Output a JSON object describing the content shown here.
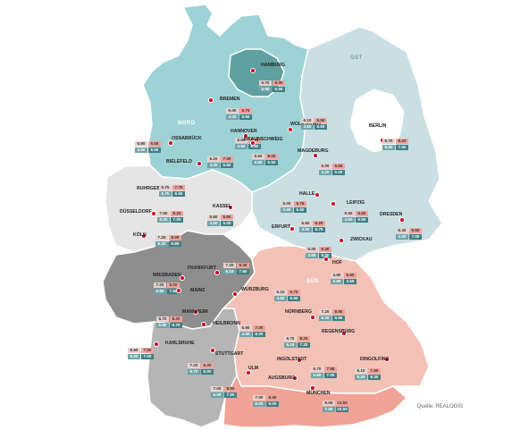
{
  "regions": [
    {
      "key": "nord",
      "label": "NORD",
      "color": "#9ed3d6"
    },
    {
      "key": "ost",
      "label": "OST",
      "color": "#c9dfe4"
    },
    {
      "key": "west",
      "label": "",
      "color": "#e5e5e5"
    },
    {
      "key": "rhein_main",
      "label": "",
      "color": "#8e8e8e"
    },
    {
      "key": "sued",
      "label": "SÜD",
      "color": "#f4c1b7"
    },
    {
      "key": "bw",
      "label": "",
      "color": "#b5b5b5"
    },
    {
      "key": "bayern_sued",
      "label": "",
      "color": "#f0a396"
    },
    {
      "key": "hamburg",
      "label": "",
      "color": "#5fa0a0"
    },
    {
      "key": "berlin",
      "label": "",
      "color": "#ffffff"
    }
  ],
  "cities": [
    {
      "name": "HAMBURG",
      "values": [
        "6.70",
        "9.00",
        "5.50",
        "6.50"
      ]
    },
    {
      "name": "BREMEN",
      "values": [
        "6.00",
        "6.75",
        "4.20",
        "5.50"
      ]
    },
    {
      "name": "NORD",
      "values": []
    },
    {
      "name": "HANNOVER",
      "values": [
        "6.00",
        "6.75",
        "4.50",
        "5.50"
      ]
    },
    {
      "name": "WOLFSBURG",
      "values": [
        "6.10",
        "6.50",
        "4.50",
        "5.50"
      ]
    },
    {
      "name": "OSNABRÜCK",
      "values": [
        "5.90",
        "6.50",
        "4.50",
        "5.50"
      ]
    },
    {
      "name": "BRAUNSCHWEIG",
      "values": [
        "6.50",
        "8.00",
        "4.90",
        "5.50"
      ]
    },
    {
      "name": "BIELEFELD",
      "values": [
        "6.20",
        "7.00",
        "4.00",
        "5.50"
      ]
    },
    {
      "name": "MAGDEBURG",
      "values": [
        "5.00",
        "5.65",
        "4.20",
        "5.00"
      ]
    },
    {
      "name": "BERLIN",
      "values": [
        "5.70",
        "8.20",
        "5.50",
        "7.50"
      ]
    },
    {
      "name": "RUHRGEBIET",
      "values": [
        "6.75",
        "7.75",
        "5.75",
        "6.50"
      ]
    },
    {
      "name": "DÜSSELDORF",
      "values": [
        "7.50",
        "8.25",
        "6.25",
        "7.00"
      ]
    },
    {
      "name": "KÖLN",
      "values": [
        "7.25",
        "8.00",
        "6.25",
        "6.85"
      ]
    },
    {
      "name": "KASSEL",
      "values": [
        "5.60",
        "6.80",
        "4.50",
        "5.00"
      ]
    },
    {
      "name": "HALLE",
      "values": [
        "5.00",
        "5.75",
        "3.90",
        "5.50"
      ]
    },
    {
      "name": "LEIPZIG",
      "values": [
        "5.50",
        "6.50",
        "4.50",
        "5.50"
      ]
    },
    {
      "name": "DRESDEN",
      "values": [
        "6.30",
        "6.60",
        "4.00",
        "7.00"
      ]
    },
    {
      "name": "ERFURT",
      "values": [
        "5.50",
        "6.20",
        "4.00",
        "5.75"
      ]
    },
    {
      "name": "ZWICKAU",
      "values": [
        "5.00",
        "5.40",
        "3.60",
        "5.00"
      ]
    },
    {
      "name": "FRANKFURT",
      "values": [
        "7.20",
        "9.30",
        "6.10",
        "7.50"
      ]
    },
    {
      "name": "WIESBADEN",
      "values": [
        "7.20",
        "8.00",
        "5.90",
        "7.50"
      ]
    },
    {
      "name": "MAINZ",
      "values": []
    },
    {
      "name": "HOF",
      "values": [
        "4.80",
        "5.60",
        "3.90",
        "4.50"
      ]
    },
    {
      "name": "SÜD",
      "values": []
    },
    {
      "name": "WÜRZBURG",
      "values": [
        "6.10",
        "6.70",
        "4.50",
        "5.90"
      ]
    },
    {
      "name": "MANNHEIM",
      "values": [
        "6.70",
        "8.20",
        "5.80",
        "6.70"
      ]
    },
    {
      "name": "NÜRNBERG",
      "values": [
        "7.20",
        "8.90",
        "6.20",
        "6.90"
      ]
    },
    {
      "name": "HEILBRONN",
      "values": [
        "5.90",
        "7.00",
        "4.90",
        "6.00"
      ]
    },
    {
      "name": "REGENSBURG",
      "values": [
        "6.70",
        "8.20",
        "6.10",
        "7.20"
      ]
    },
    {
      "name": "KARLSRUHE",
      "values": [
        "6.50",
        "7.50",
        "5.50",
        "7.00"
      ]
    },
    {
      "name": "STUTTGART",
      "values": [
        "7.20",
        "9.30",
        "5.70",
        "8.00"
      ]
    },
    {
      "name": "INGOLSTADT",
      "values": [
        "6.70",
        "7.95",
        "5.60",
        "7.00"
      ]
    },
    {
      "name": "DINGOLFING",
      "values": [
        "6.10",
        "7.50",
        "5.20",
        "6.30"
      ]
    },
    {
      "name": "ULM",
      "values": [
        "7.00",
        "8.50",
        "6.00",
        "7.50"
      ]
    },
    {
      "name": "AUGSBURG",
      "values": [
        "7.00",
        "8.50",
        "6.00",
        "6.00"
      ]
    },
    {
      "name": "MÜNCHEN",
      "values": [
        "9.50",
        "13.50",
        "7.50",
        "10.50"
      ]
    }
  ],
  "source": "Quelle: REALOGIS"
}
